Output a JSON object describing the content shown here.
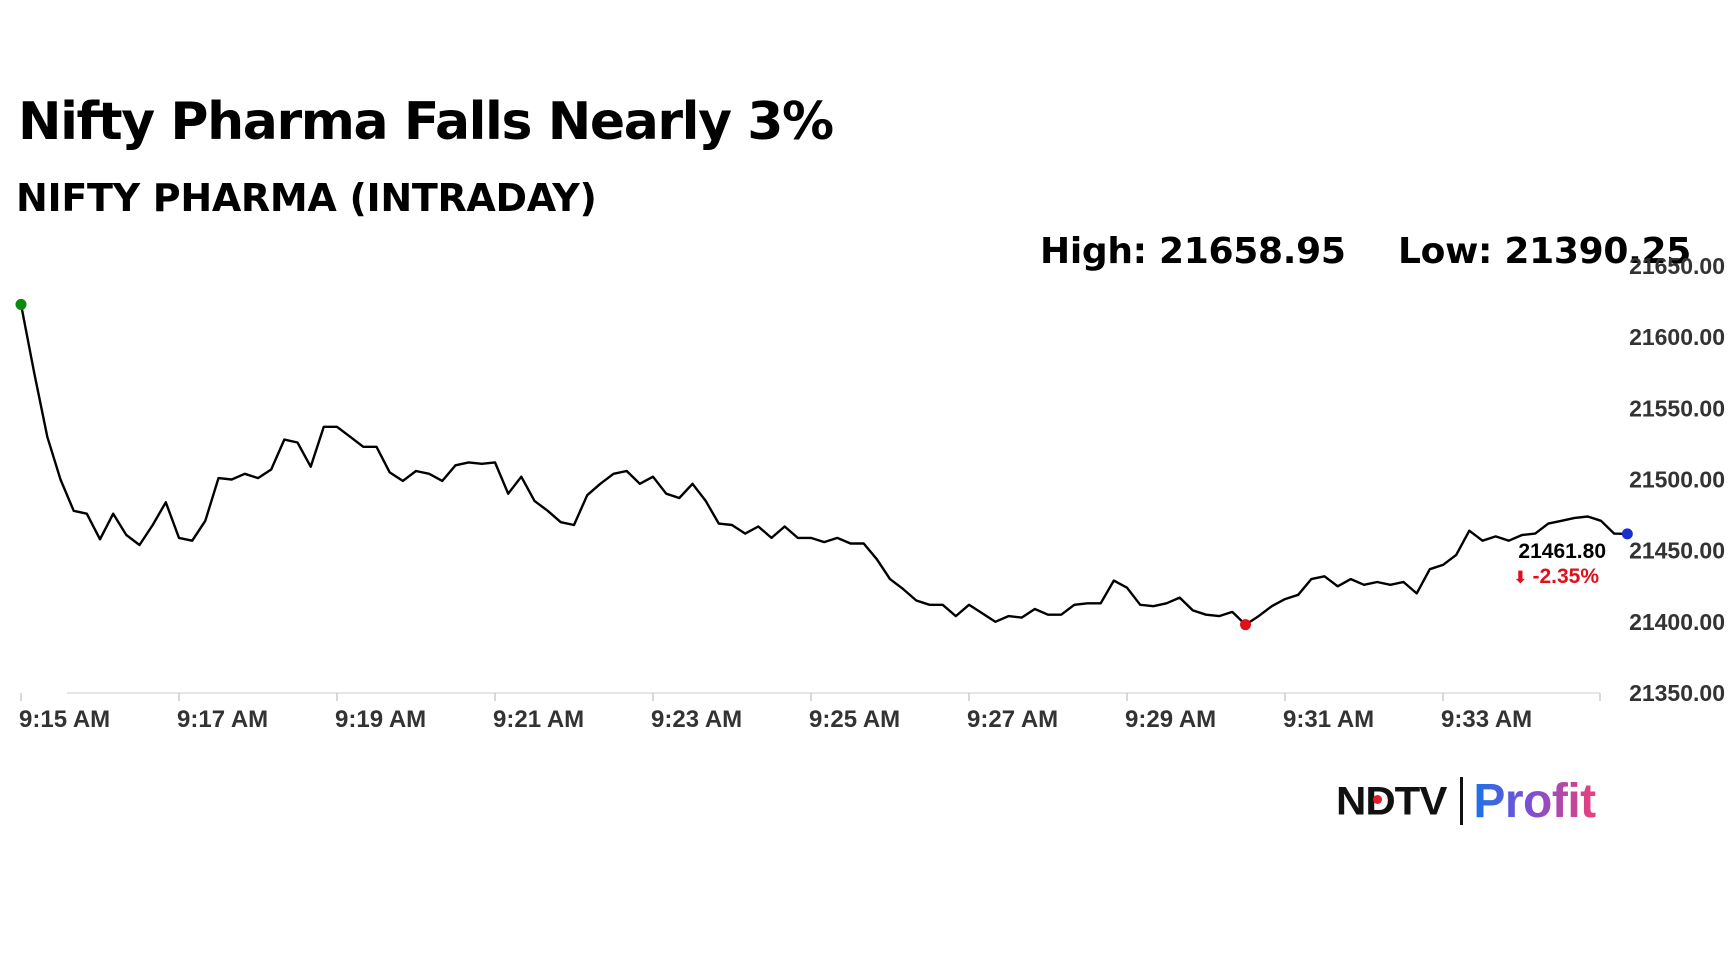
{
  "headline": "Nifty Pharma Falls Nearly 3%",
  "subtitle": "NIFTY PHARMA (INTRADAY)",
  "stats": {
    "high": "High: 21658.95",
    "low": "Low: 21390.25"
  },
  "last_value": "21461.80",
  "change": "-2.35%",
  "change_arrow": "⬇",
  "colors": {
    "line": "#000000",
    "start_dot": "#0a8a0a",
    "low_dot": "#e0101a",
    "end_dot": "#1a2fd0",
    "change": "#e0101a",
    "grid": "#dddddd"
  },
  "logo": {
    "ndtv": "NDTV",
    "profit": "Profit"
  },
  "chart_data": {
    "type": "line",
    "title": "Nifty Pharma Falls Nearly 3%",
    "subtitle": "NIFTY PHARMA (INTRADAY)",
    "xlabel": "",
    "ylabel": "",
    "x_ticks": [
      "9:15 AM",
      "9:17 AM",
      "9:19 AM",
      "9:21 AM",
      "9:23 AM",
      "9:25 AM",
      "9:27 AM",
      "9:29 AM",
      "9:31 AM",
      "9:33 AM"
    ],
    "y_ticks": [
      "21350.00",
      "21400.00",
      "21450.00",
      "21500.00",
      "21550.00",
      "21600.00",
      "21650.00"
    ],
    "ylim": [
      21350,
      21650
    ],
    "y_axis_side": "right",
    "grid": false,
    "x_start_minute": 0,
    "minutes_per_point": 0.166667,
    "series": [
      {
        "values": [
          21623,
          21575,
          21530,
          21500,
          21478,
          21476,
          21458,
          21476,
          21461,
          21454,
          21468,
          21484,
          21459,
          21457,
          21471,
          21501,
          21500,
          21504,
          21501,
          21507,
          21528,
          21526,
          21509,
          21537,
          21537,
          21530,
          21523,
          21523,
          21505,
          21499,
          21506,
          21504,
          21499,
          21510,
          21512,
          21511,
          21512,
          21490,
          21502,
          21485,
          21478,
          21470,
          21468,
          21489,
          21497,
          21504,
          21506,
          21497,
          21502,
          21490,
          21487,
          21497,
          21485,
          21469,
          21468,
          21462,
          21467,
          21459,
          21467,
          21459,
          21459,
          21456,
          21459,
          21455,
          21455,
          21444,
          21430,
          21423,
          21415,
          21412,
          21412,
          21404,
          21412,
          21406,
          21400,
          21404,
          21403,
          21409,
          21405,
          21405,
          21412,
          21413,
          21413,
          21429,
          21424,
          21412,
          21411,
          21413,
          21417,
          21408,
          21405,
          21404,
          21407,
          21398,
          21404,
          21411,
          21416,
          21419,
          21430,
          21432,
          21425,
          21430,
          21426,
          21428,
          21426,
          21428,
          21420,
          21437,
          21440,
          21447,
          21464,
          21457,
          21460,
          21457,
          21461,
          21462,
          21469,
          21471,
          21473,
          21474,
          21471,
          21462,
          21461.8
        ]
      }
    ],
    "markers": {
      "start": 21623,
      "low": 21398,
      "end": 21461.8
    }
  }
}
